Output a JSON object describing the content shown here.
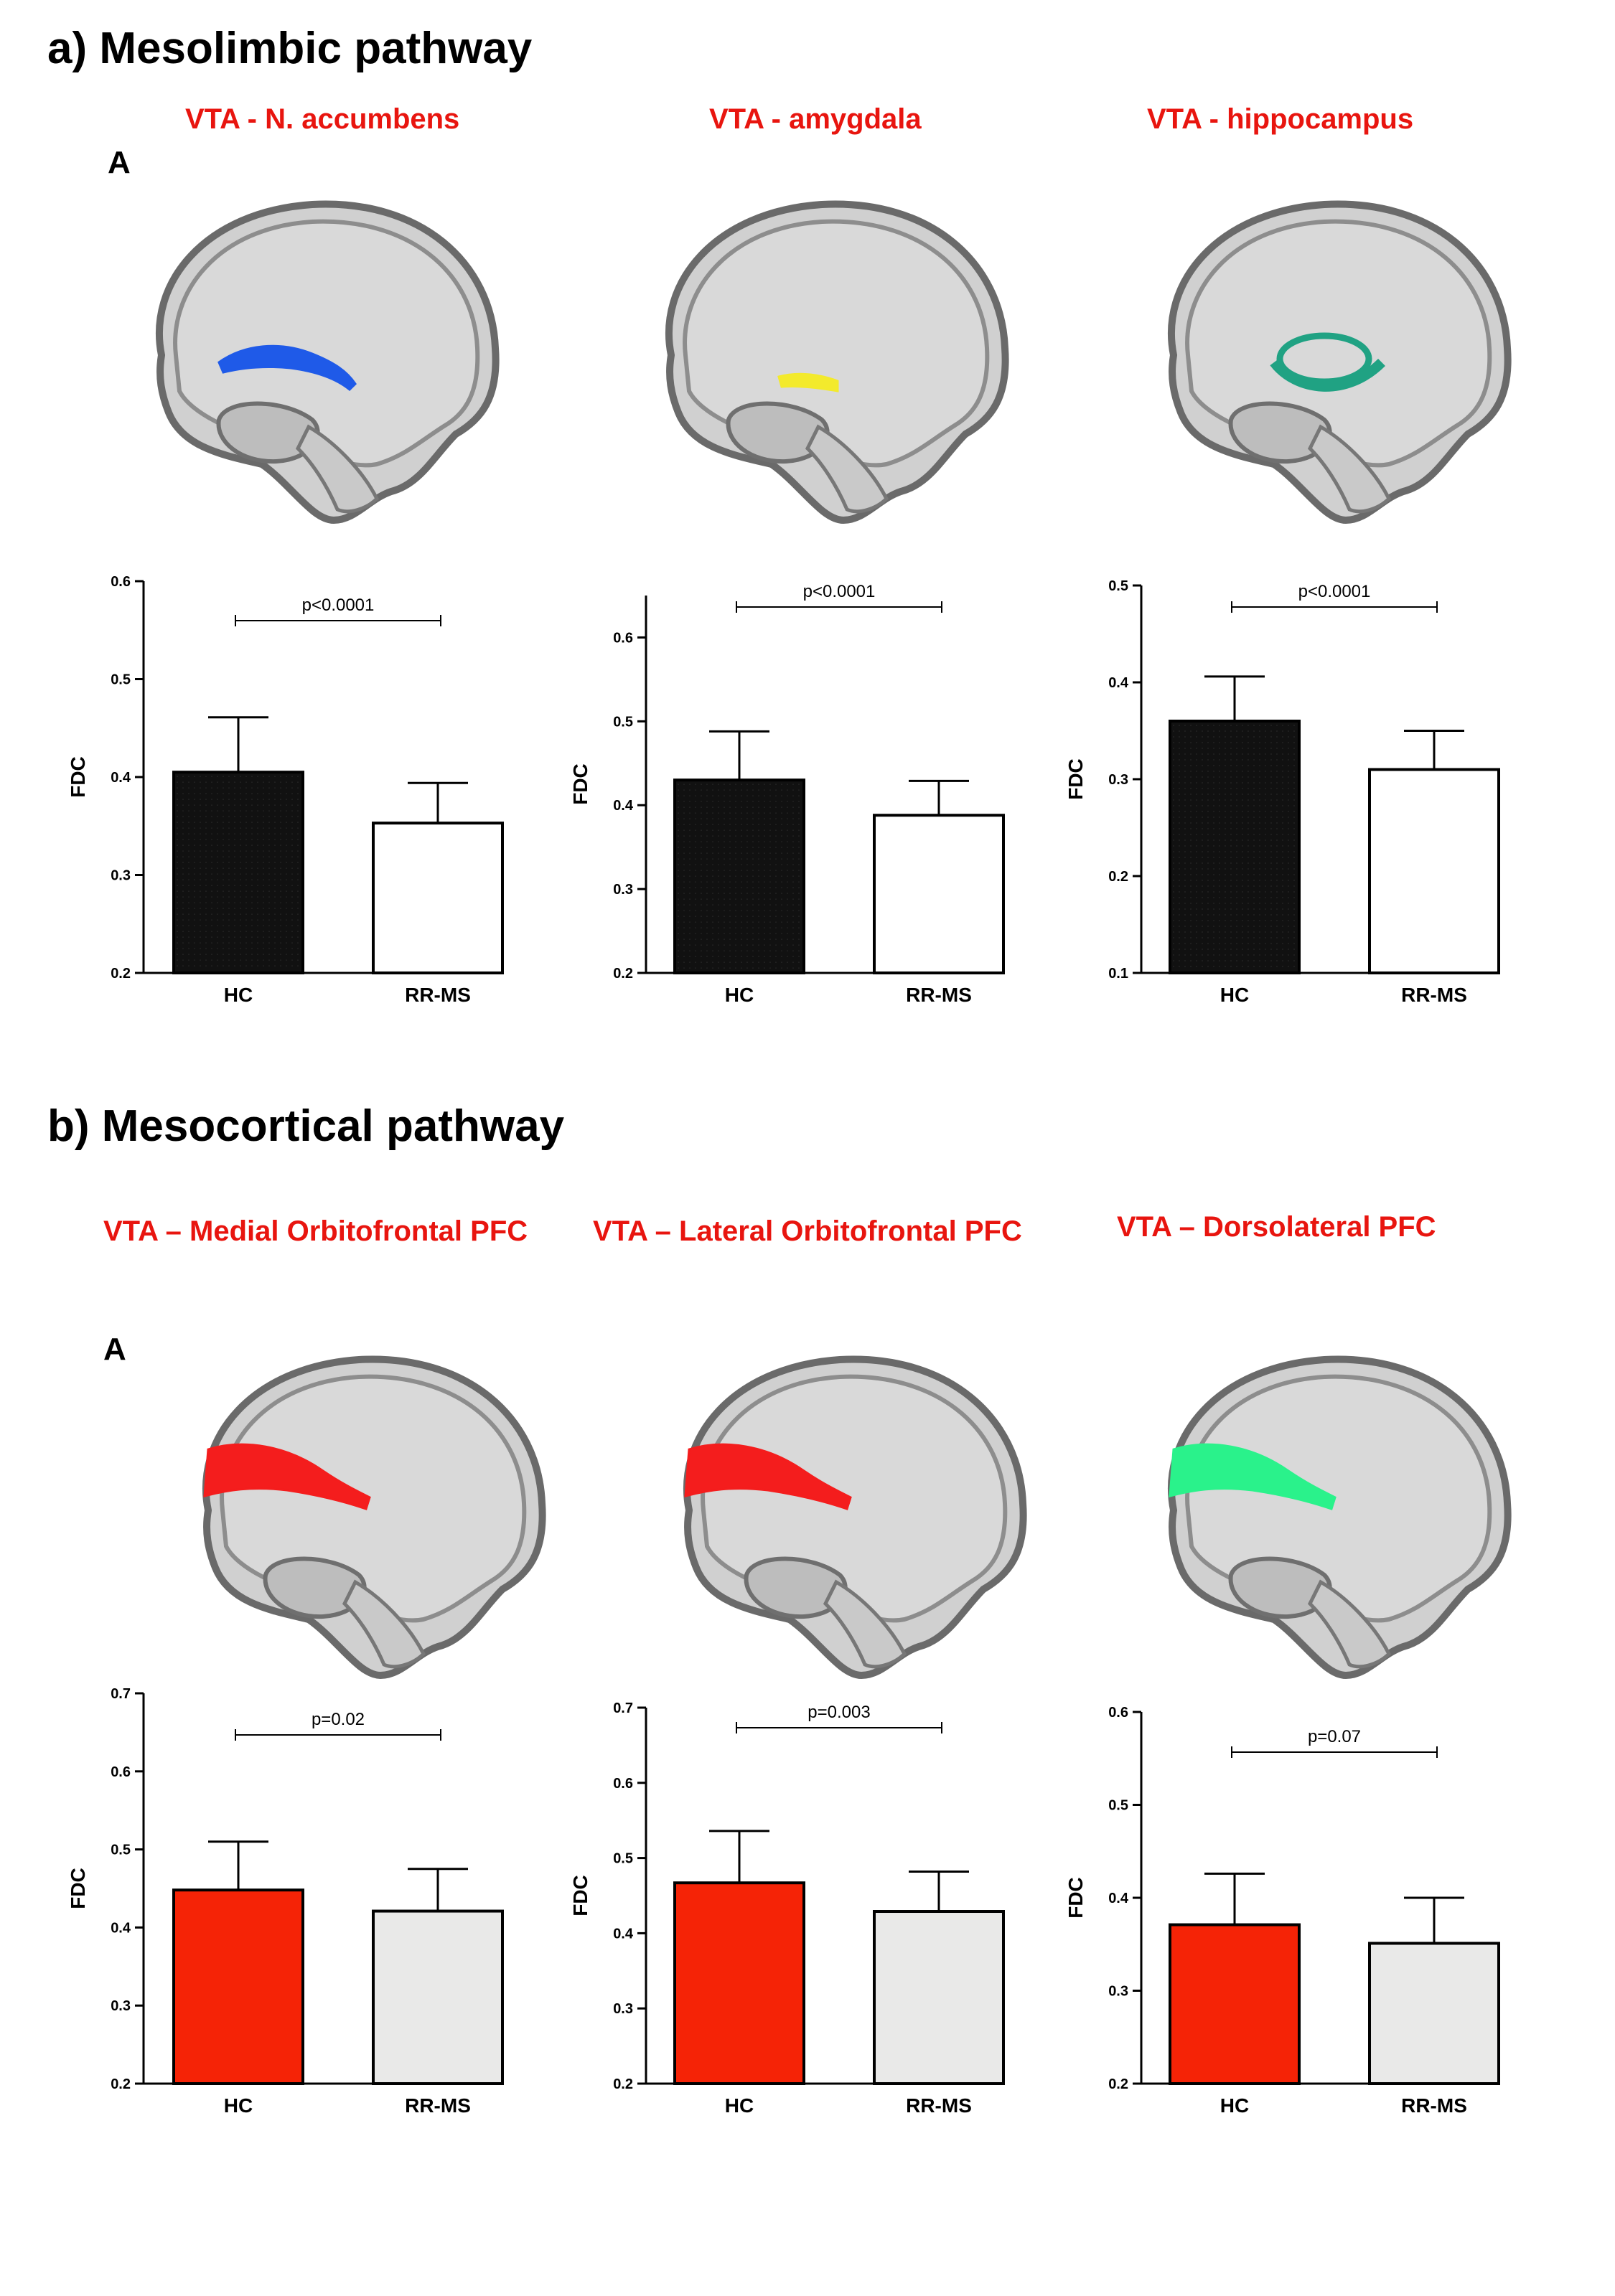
{
  "sections": [
    {
      "title": "a) Mesolimbic pathway",
      "letter": "A"
    },
    {
      "title": "b) Mesocortical pathway",
      "letter": "A"
    }
  ],
  "colors": {
    "title_red": "#e8150f",
    "bar_black": "#111111",
    "bar_white": "#ffffff",
    "bar_red": "#f52306",
    "bar_grey": "#e9e9e8",
    "tract_blue": "#1f5ae8",
    "tract_yellow": "#f3ea2c",
    "tract_teal": "#20a283",
    "tract_red": "#f41d1d",
    "tract_green": "#2af28b"
  },
  "panels": [
    {
      "title": "VTA - N. accumbens",
      "tract_color": "tract_blue",
      "tract": "nacc"
    },
    {
      "title": "VTA - amygdala",
      "tract_color": "tract_yellow",
      "tract": "amyg"
    },
    {
      "title": "VTA - hippocampus",
      "tract_color": "tract_teal",
      "tract": "hippo"
    },
    {
      "title": "VTA – Medial Orbitofrontal PFC",
      "tract_color": "tract_red",
      "tract": "pfc"
    },
    {
      "title": "VTA – Lateral Orbitofrontal PFC",
      "tract_color": "tract_red",
      "tract": "pfc"
    },
    {
      "title": "VTA – Dorsolateral PFC",
      "tract_color": "tract_green",
      "tract": "pfc"
    }
  ],
  "chart_data": [
    {
      "type": "bar",
      "title": "VTA - N. accumbens",
      "categories": [
        "HC",
        "RR-MS"
      ],
      "values": [
        0.405,
        0.353
      ],
      "errors": [
        0.056,
        0.041
      ],
      "ylabel": "FDC",
      "ylim": [
        0.2,
        0.6
      ],
      "yticks": [
        "0.2",
        "0.3",
        "0.4",
        "0.5",
        "0.6"
      ],
      "p_value": "p<0.0001",
      "bar_colors": [
        "bar_black",
        "bar_white"
      ]
    },
    {
      "type": "bar",
      "title": "VTA - amygdala",
      "categories": [
        "HC",
        "RR-MS"
      ],
      "values": [
        0.43,
        0.388
      ],
      "errors": [
        0.058,
        0.041
      ],
      "ylabel": "FDC",
      "ylim": [
        0.2,
        0.65
      ],
      "yticks": [
        "0.2",
        "0.3",
        "0.4",
        "0.5",
        "0.6"
      ],
      "p_value": "p<0.0001",
      "bar_colors": [
        "bar_black",
        "bar_white"
      ]
    },
    {
      "type": "bar",
      "title": "VTA - hippocampus",
      "categories": [
        "HC",
        "RR-MS"
      ],
      "values": [
        0.36,
        0.31
      ],
      "errors": [
        0.046,
        0.04
      ],
      "ylabel": "FDC",
      "ylim": [
        0.1,
        0.5
      ],
      "yticks": [
        "0.1",
        "0.2",
        "0.3",
        "0.4",
        "0.5"
      ],
      "p_value": "p<0.0001",
      "bar_colors": [
        "bar_black",
        "bar_white"
      ]
    },
    {
      "type": "bar",
      "title": "VTA – Medial Orbitofrontal PFC",
      "categories": [
        "HC",
        "RR-MS"
      ],
      "values": [
        0.448,
        0.421
      ],
      "errors": [
        0.062,
        0.054
      ],
      "ylabel": "FDC",
      "ylim": [
        0.2,
        0.7
      ],
      "yticks": [
        "0.2",
        "0.3",
        "0.4",
        "0.5",
        "0.6",
        "0.7"
      ],
      "p_value": "p=0.02",
      "bar_colors": [
        "bar_red",
        "bar_grey"
      ]
    },
    {
      "type": "bar",
      "title": "VTA – Lateral Orbitofrontal PFC",
      "categories": [
        "HC",
        "RR-MS"
      ],
      "values": [
        0.467,
        0.429
      ],
      "errors": [
        0.069,
        0.053
      ],
      "ylabel": "FDC",
      "ylim": [
        0.2,
        0.7
      ],
      "yticks": [
        "0.2",
        "0.3",
        "0.4",
        "0.5",
        "0.6",
        "0.7"
      ],
      "p_value": "p=0.003",
      "bar_colors": [
        "bar_red",
        "bar_grey"
      ]
    },
    {
      "type": "bar",
      "title": "VTA – Dorsolateral PFC",
      "categories": [
        "HC",
        "RR-MS"
      ],
      "values": [
        0.371,
        0.351
      ],
      "errors": [
        0.055,
        0.049
      ],
      "ylabel": "FDC",
      "ylim": [
        0.2,
        0.6
      ],
      "yticks": [
        "0.2",
        "0.3",
        "0.4",
        "0.5",
        "0.6"
      ],
      "p_value": "p=0.07",
      "bar_colors": [
        "bar_red",
        "bar_grey"
      ]
    }
  ]
}
